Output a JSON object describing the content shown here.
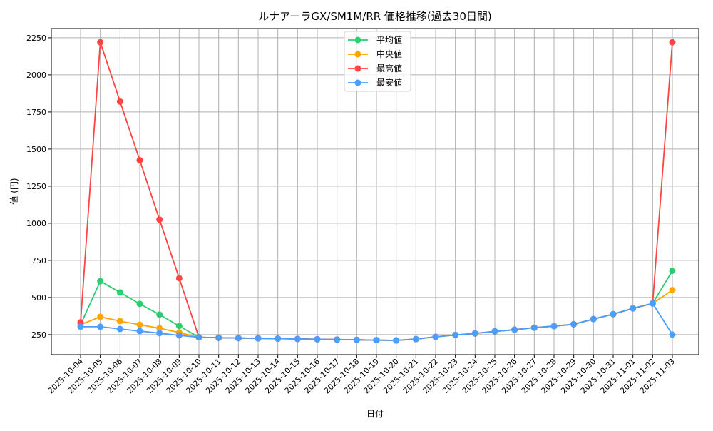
{
  "chart_data": {
    "type": "line",
    "title": "ルナアーラGX/SM1M/RR 価格推移(過去30日間)",
    "xlabel": "日付",
    "ylabel": "値 (円)",
    "ylim": [
      115,
      2312
    ],
    "yticks": [
      250,
      500,
      750,
      1000,
      1250,
      1500,
      1750,
      2000,
      2250
    ],
    "grid": true,
    "legend_position": "top-center",
    "x": [
      "2025-10-04",
      "2025-10-05",
      "2025-10-06",
      "2025-10-07",
      "2025-10-08",
      "2025-10-09",
      "2025-10-10",
      "2025-10-11",
      "2025-10-12",
      "2025-10-13",
      "2025-10-14",
      "2025-10-15",
      "2025-10-16",
      "2025-10-17",
      "2025-10-18",
      "2025-10-19",
      "2025-10-20",
      "2025-10-21",
      "2025-10-22",
      "2025-10-23",
      "2025-10-24",
      "2025-10-25",
      "2025-10-26",
      "2025-10-27",
      "2025-10-28",
      "2025-10-29",
      "2025-10-30",
      "2025-10-31",
      "2025-11-01",
      "2025-11-02",
      "2025-11-03"
    ],
    "series": [
      {
        "name": "平均値",
        "color": "#2ecc71",
        "values": [
          317,
          610,
          534,
          457,
          385,
          308,
          232,
          229,
          227,
          225,
          223,
          221,
          219,
          217,
          215,
          213,
          211,
          220,
          235,
          248,
          258,
          272,
          283,
          297,
          307,
          320,
          355,
          388,
          427,
          460,
          680
        ]
      },
      {
        "name": "中央値",
        "color": "#ffa500",
        "values": [
          317,
          370,
          341,
          317,
          293,
          264,
          232,
          229,
          227,
          225,
          223,
          221,
          219,
          217,
          215,
          213,
          211,
          220,
          235,
          248,
          258,
          272,
          283,
          297,
          307,
          320,
          355,
          388,
          427,
          460,
          550
        ]
      },
      {
        "name": "最高値",
        "color": "#ff4444",
        "values": [
          333,
          2220,
          1820,
          1425,
          1025,
          630,
          232,
          229,
          227,
          225,
          223,
          221,
          219,
          217,
          215,
          213,
          211,
          220,
          235,
          248,
          258,
          272,
          283,
          297,
          307,
          320,
          355,
          388,
          427,
          460,
          2220
        ]
      },
      {
        "name": "最安値",
        "color": "#4a9eff",
        "values": [
          303,
          303,
          288,
          274,
          260,
          245,
          232,
          229,
          227,
          225,
          223,
          221,
          219,
          217,
          215,
          213,
          211,
          220,
          235,
          248,
          258,
          272,
          283,
          297,
          307,
          320,
          355,
          388,
          427,
          460,
          250
        ]
      }
    ]
  }
}
